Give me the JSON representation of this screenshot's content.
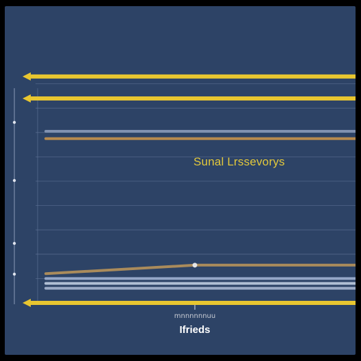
{
  "chart_data": {
    "type": "line",
    "title": "",
    "annotation": "Sunal Lrssevorys",
    "xtick_label": "mnnnnnnuu",
    "xlabel": "Ifrieds",
    "x": [
      0,
      1,
      2
    ],
    "ylim": [
      0,
      10
    ],
    "series": [
      {
        "values": [
          9.3,
          9.3,
          9.3
        ],
        "color": "#e8c630"
      },
      {
        "values": [
          8.4,
          8.4,
          8.4
        ],
        "color": "#e8c630"
      },
      {
        "values": [
          7.05,
          7.05,
          7.05
        ],
        "color": "#8a9ab8"
      },
      {
        "values": [
          6.75,
          6.75,
          6.75
        ],
        "color": "#c8924a"
      },
      {
        "values": [
          1.2,
          1.55,
          1.55
        ],
        "color": "#b8945a"
      },
      {
        "values": [
          1.0,
          1.0,
          1.0
        ],
        "color": "#9fb0d0"
      },
      {
        "values": [
          0.8,
          0.8,
          0.8
        ],
        "color": "#c0cde0"
      },
      {
        "values": [
          0.6,
          0.6,
          0.6
        ],
        "color": "#aab8d2"
      },
      {
        "values": [
          0.0,
          0.0,
          0.0
        ],
        "color": "#e8c630"
      }
    ],
    "grid": true
  }
}
